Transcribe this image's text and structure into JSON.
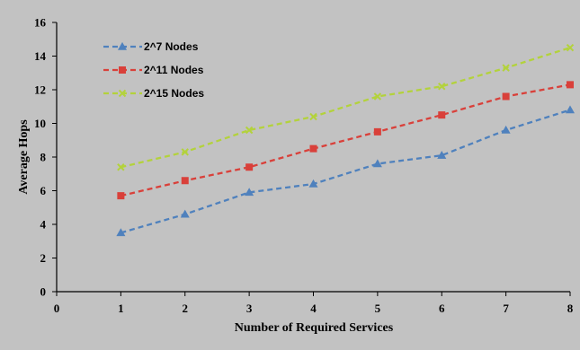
{
  "chart_data": {
    "type": "line",
    "title": "",
    "xlabel": "Number of Required Services",
    "ylabel": "Average Hops",
    "xlim": [
      0,
      8
    ],
    "ylim": [
      0,
      16
    ],
    "x_ticks": [
      0,
      1,
      2,
      3,
      4,
      5,
      6,
      7,
      8
    ],
    "y_ticks": [
      0,
      2,
      4,
      6,
      8,
      10,
      12,
      14,
      16
    ],
    "grid": false,
    "legend_position": "top-left",
    "background_color": "#c2c2c2",
    "x": [
      1,
      2,
      3,
      4,
      5,
      6,
      7,
      8
    ],
    "series": [
      {
        "name": "2^7 Nodes",
        "color": "#4f81bd",
        "marker": "triangle",
        "line_style": "dashed",
        "values": [
          3.5,
          4.6,
          5.9,
          6.4,
          7.6,
          8.1,
          9.6,
          10.8
        ]
      },
      {
        "name": "2^11 Nodes",
        "color": "#d9403a",
        "marker": "square",
        "line_style": "dashed",
        "values": [
          5.7,
          6.6,
          7.4,
          8.5,
          9.5,
          10.5,
          11.6,
          12.3
        ]
      },
      {
        "name": "2^15 Nodes",
        "color": "#b3d23c",
        "marker": "x",
        "line_style": "dashed",
        "values": [
          7.4,
          8.3,
          9.6,
          10.4,
          11.6,
          12.2,
          13.3,
          14.5
        ]
      }
    ]
  }
}
